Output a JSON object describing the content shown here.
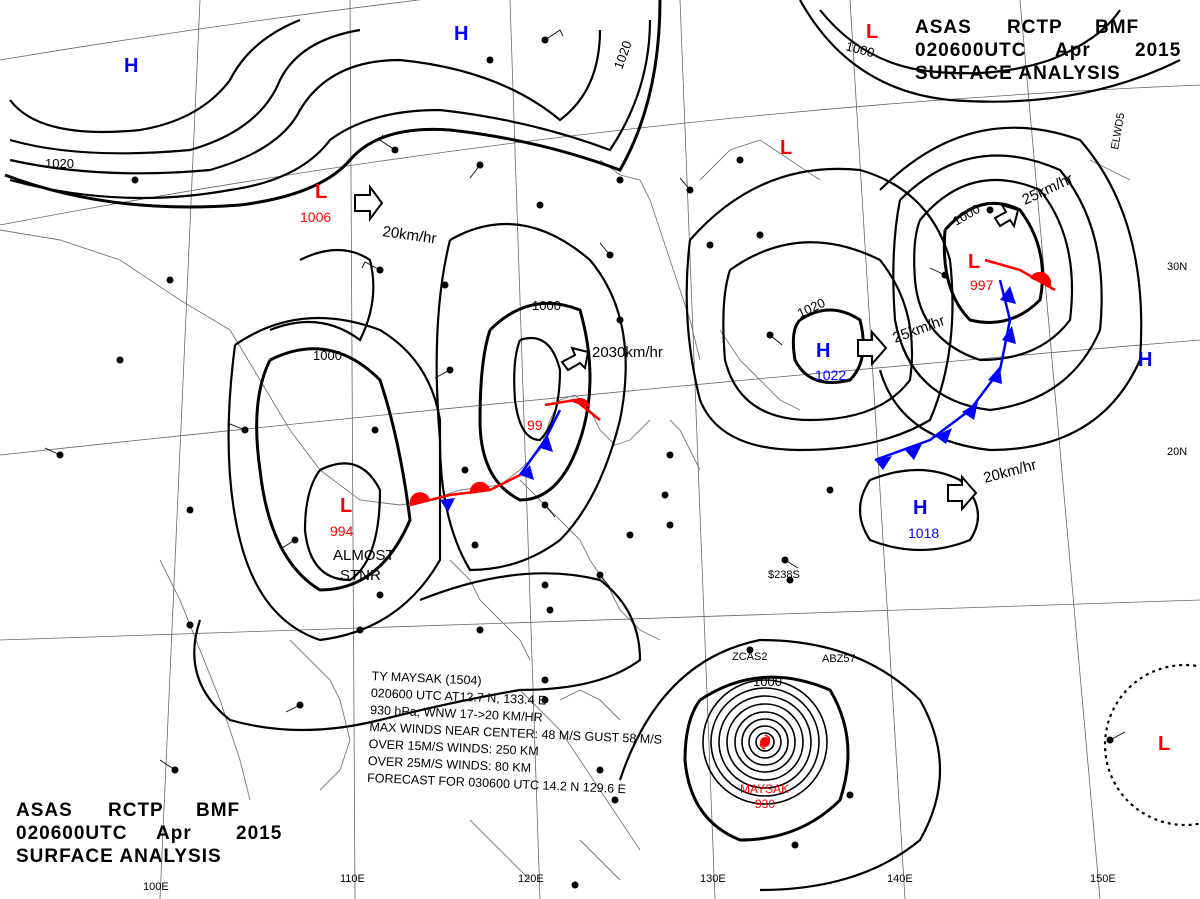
{
  "header": {
    "title_words": [
      "ASAS",
      "RCTP",
      "BMF"
    ],
    "date_words": [
      "020600UTC",
      "Apr",
      "2015"
    ],
    "product": "SURFACE ANALYSIS"
  },
  "typhoon_bulletin": {
    "lines": [
      "TY  MAYSAK  (1504)",
      "020600 UTC  AT12.7 N, 133.4 E",
      "930 hPa, WNW  17->20 KM/HR",
      "MAX WINDS NEAR CENTER: 48 M/S GUST 58 M/S",
      "OVER 15M/S WINDS: 250 KM",
      "OVER 25M/S WINDS: 80 KM",
      "FORECAST FOR 030600 UTC  14.2 N 129.6 E"
    ],
    "storm_label": "MAYSAK",
    "storm_pressure": "930"
  },
  "pressure_systems": [
    {
      "id": "L-1006",
      "type": "L",
      "value": "1006",
      "color": "#ff0000"
    },
    {
      "id": "L-994",
      "type": "L",
      "value": "994",
      "color": "#ff0000"
    },
    {
      "id": "L-99x",
      "type": "L",
      "value": "99",
      "color": "#ff0000"
    },
    {
      "id": "L-997",
      "type": "L",
      "value": "997",
      "color": "#ff0000"
    },
    {
      "id": "L-ne1",
      "type": "L",
      "value": "",
      "color": "#ff0000"
    },
    {
      "id": "L-ne2",
      "type": "L",
      "value": "",
      "color": "#ff0000"
    },
    {
      "id": "L-se",
      "type": "L",
      "value": "",
      "color": "#ff0000"
    },
    {
      "id": "H-1022",
      "type": "H",
      "value": "1022",
      "color": "#0000ff"
    },
    {
      "id": "H-1018",
      "type": "H",
      "value": "1018",
      "color": "#0000ff"
    },
    {
      "id": "H-nw",
      "type": "H",
      "value": "",
      "color": "#0000ff"
    },
    {
      "id": "H-n",
      "type": "H",
      "value": "",
      "color": "#0000ff"
    },
    {
      "id": "H-e",
      "type": "H",
      "value": "",
      "color": "#0000ff"
    }
  ],
  "isobar_labels": [
    "1020",
    "1020",
    "1000",
    "1000",
    "1020",
    "1000",
    "1000",
    "1000"
  ],
  "motion_labels": [
    "20km/hr",
    "2030km/hr",
    "25km/hr",
    "25km/hr",
    "20km/hr"
  ],
  "annotations": {
    "almost_stnr": [
      "ALMOST",
      "STNR"
    ]
  },
  "longitude_labels": [
    "100E",
    "110E",
    "120E",
    "130E",
    "140E",
    "150E"
  ],
  "latitude_labels": [
    "30N",
    "20N"
  ],
  "station_codes": [
    "ZCAS2",
    "ABZ57",
    "ELWD5",
    "$238S"
  ],
  "colors": {
    "low": "#ff0000",
    "high": "#0000ff",
    "isobar": "#000000",
    "coast": "#666666",
    "grid": "#555555"
  }
}
